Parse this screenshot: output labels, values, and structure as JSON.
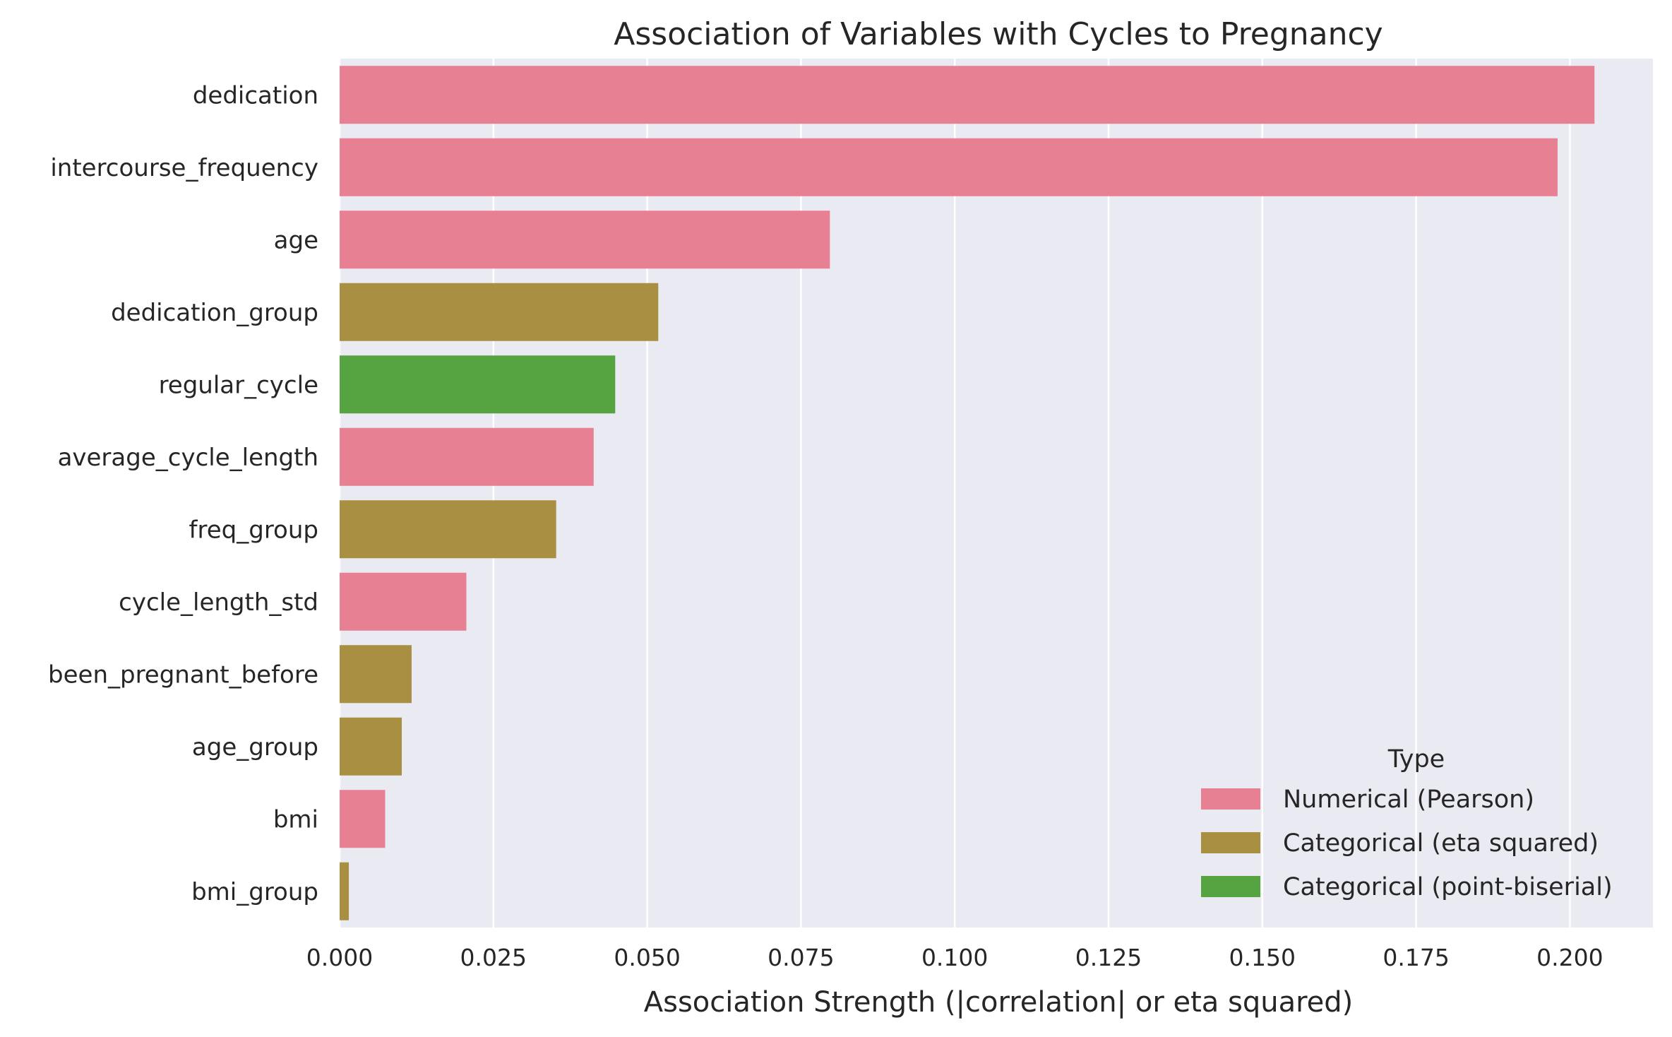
{
  "chart_data": {
    "type": "bar",
    "orientation": "horizontal",
    "title": "Association of Variables with Cycles to Pregnancy",
    "xlabel": "Association Strength (|correlation| or eta squared)",
    "ylabel": "",
    "xlim": [
      0,
      0.2135
    ],
    "xticks": [
      "0.000",
      "0.025",
      "0.050",
      "0.075",
      "0.100",
      "0.125",
      "0.150",
      "0.175",
      "0.200"
    ],
    "xtick_values": [
      0,
      0.025,
      0.05,
      0.075,
      0.1,
      0.125,
      0.15,
      0.175,
      0.2
    ],
    "grid": true,
    "categories": [
      "dedication",
      "intercourse_frequency",
      "age",
      "dedication_group",
      "regular_cycle",
      "average_cycle_length",
      "freq_group",
      "cycle_length_std",
      "been_pregnant_before",
      "age_group",
      "bmi",
      "bmi_group"
    ],
    "values": [
      0.204,
      0.198,
      0.0797,
      0.0518,
      0.0448,
      0.0413,
      0.0352,
      0.0206,
      0.0117,
      0.0101,
      0.0074,
      0.0015
    ],
    "types": [
      "Numerical (Pearson)",
      "Numerical (Pearson)",
      "Numerical (Pearson)",
      "Categorical (eta squared)",
      "Categorical (point-biserial)",
      "Numerical (Pearson)",
      "Categorical (eta squared)",
      "Numerical (Pearson)",
      "Categorical (eta squared)",
      "Categorical (eta squared)",
      "Numerical (Pearson)",
      "Categorical (eta squared)"
    ],
    "legend": {
      "title": "Type",
      "position": "lower-right",
      "entries": [
        {
          "label": "Numerical (Pearson)",
          "color": "#e88093"
        },
        {
          "label": "Categorical (eta squared)",
          "color": "#a88f41"
        },
        {
          "label": "Categorical (point-biserial)",
          "color": "#56a341"
        }
      ]
    }
  },
  "colors": {
    "plot_background": "#eaeaf2",
    "grid": "#ffffff",
    "text": "#262626"
  }
}
